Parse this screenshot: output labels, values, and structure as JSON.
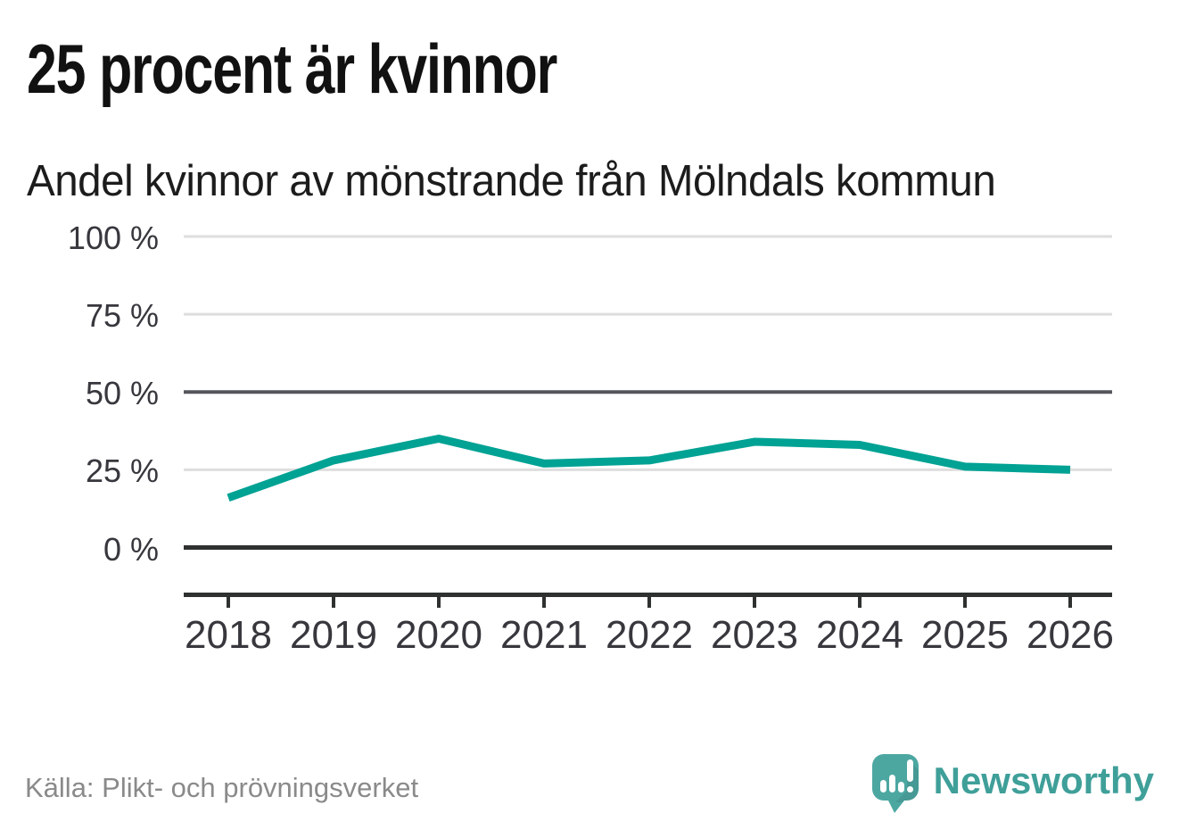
{
  "header": {
    "title": "25 procent är kvinnor",
    "subtitle": "Andel kvinnor av mönstrande från Mölndals kommun"
  },
  "chart_data": {
    "type": "line",
    "title": "25 procent är kvinnor",
    "subtitle": "Andel kvinnor av mönstrande från Mölndals kommun",
    "categories": [
      "2018",
      "2019",
      "2020",
      "2021",
      "2022",
      "2023",
      "2024",
      "2025",
      "2026"
    ],
    "series": [
      {
        "name": "Andel kvinnor av mönstrande",
        "values": [
          16,
          28,
          35,
          27,
          28,
          34,
          33,
          26,
          25
        ]
      }
    ],
    "unit": "%",
    "ylim": [
      0,
      100
    ],
    "yticks": [
      0,
      25,
      50,
      75,
      100
    ],
    "ytick_labels": [
      "0 %",
      "25 %",
      "50 %",
      "75 %",
      "100 %"
    ],
    "grid": "horizontal-only",
    "legend": "none",
    "line_color": "#00a294"
  },
  "footer": {
    "source": "Källa: Plikt- och prövningsverket",
    "brand": "Newsworthy"
  },
  "colors": {
    "accent": "#00a294",
    "brand_teal": "#4ca7a1",
    "brand_text": "#3f9f99",
    "grid_light": "#dedede",
    "grid_mid": "#55555e",
    "axis_dark": "#2f3030",
    "text_dark": "#111111",
    "text_tick": "#37373d",
    "text_source": "#8a8a8a"
  },
  "icons": {
    "brand_logo": "newsworthy-speech-bubble-bar-chart-icon"
  }
}
